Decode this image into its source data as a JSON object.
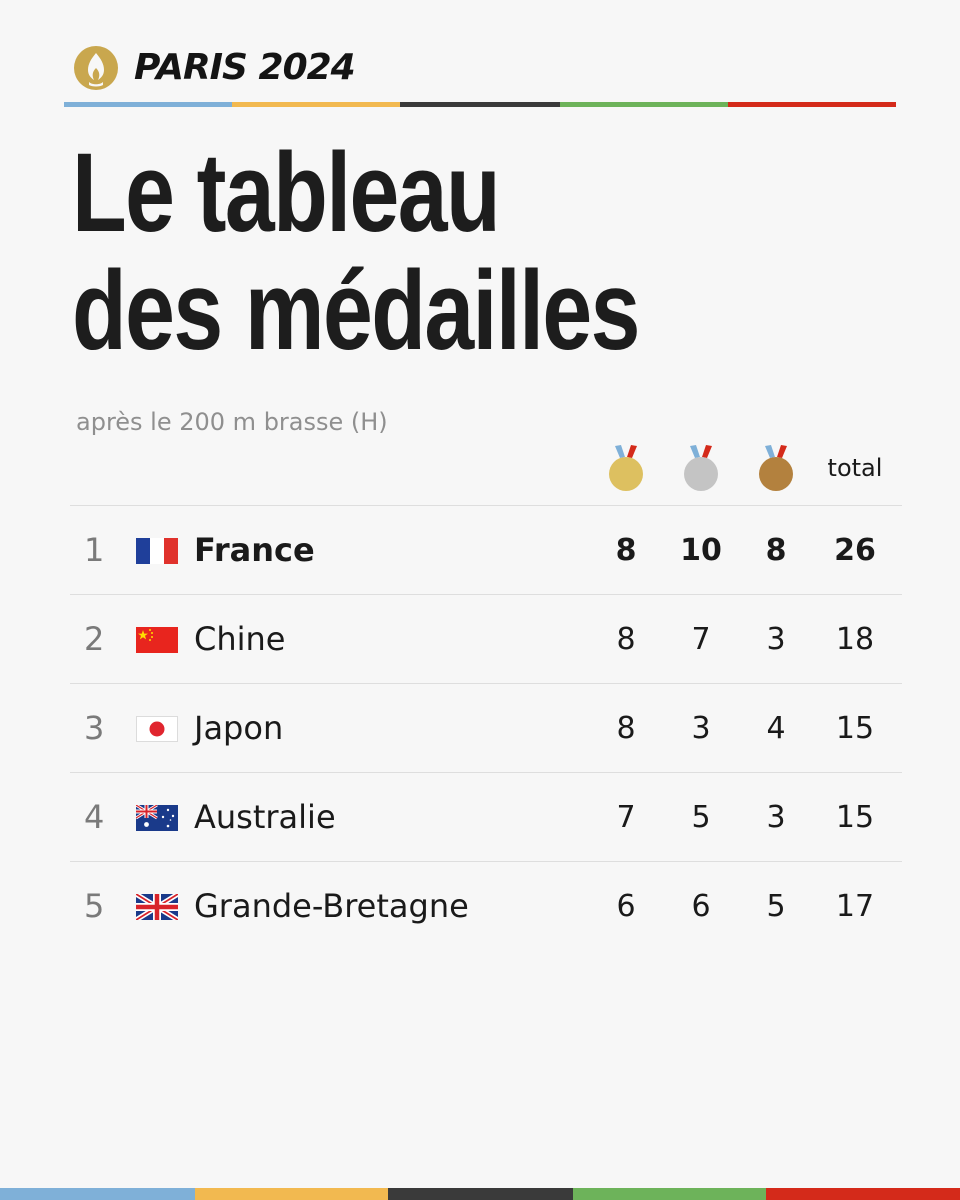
{
  "brand": {
    "name": "PARIS 2024",
    "logo_icon": "paris-2024-flame-logo-icon",
    "gold_color": "#c9a74e"
  },
  "stripe_colors": [
    "#7fb0d8",
    "#f2b950",
    "#3a3a3a",
    "#6db35a",
    "#d42a1a"
  ],
  "title": {
    "line1": "Le tableau",
    "line2": "des médailles"
  },
  "subtitle": "après le 200 m brasse (H)",
  "columns": {
    "gold_icon": "gold-medal-icon",
    "silver_icon": "silver-medal-icon",
    "bronze_icon": "bronze-medal-icon",
    "total_label": "total"
  },
  "medal_colors": {
    "gold": "#ddc060",
    "silver": "#c4c4c4",
    "bronze": "#b3813e",
    "ribbon_blue": "#7fb0d8",
    "ribbon_red": "#d42a1a"
  },
  "rows": [
    {
      "rank": "1",
      "flag": "france-flag-icon",
      "country": "France",
      "gold": "8",
      "silver": "10",
      "bronze": "8",
      "total": "26"
    },
    {
      "rank": "2",
      "flag": "china-flag-icon",
      "country": "Chine",
      "gold": "8",
      "silver": "7",
      "bronze": "3",
      "total": "18"
    },
    {
      "rank": "3",
      "flag": "japan-flag-icon",
      "country": "Japon",
      "gold": "8",
      "silver": "3",
      "bronze": "4",
      "total": "15"
    },
    {
      "rank": "4",
      "flag": "australia-flag-icon",
      "country": "Australie",
      "gold": "7",
      "silver": "5",
      "bronze": "3",
      "total": "15"
    },
    {
      "rank": "5",
      "flag": "great-britain-flag-icon",
      "country": "Grande-Bretagne",
      "gold": "6",
      "silver": "6",
      "bronze": "5",
      "total": "17"
    }
  ]
}
